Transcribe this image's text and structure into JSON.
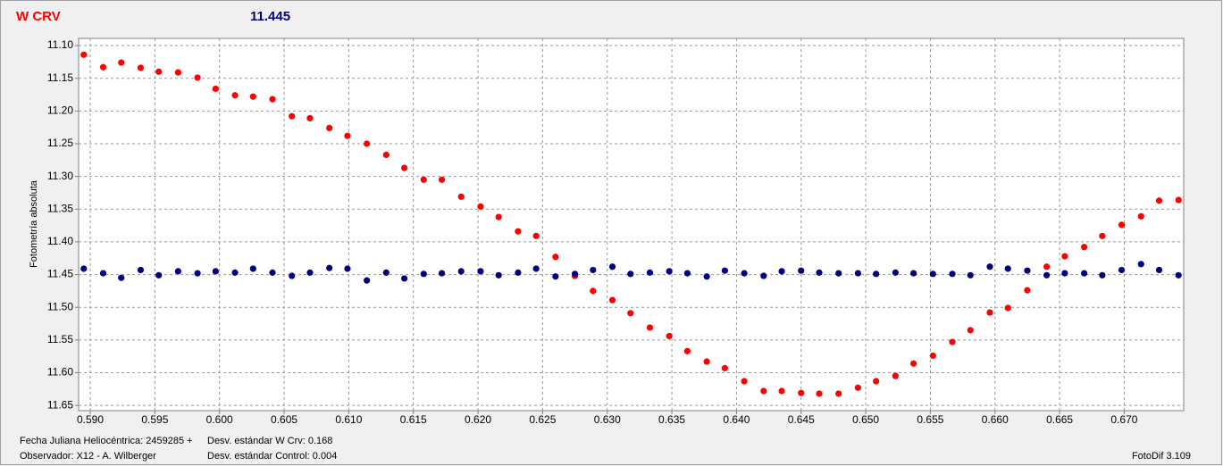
{
  "chart_data": {
    "type": "scatter",
    "title": "W CRV",
    "subtitle": "11.445",
    "y_label": "Fotometría absoluta",
    "footer": {
      "left1": "Fecha Juliana Heliocéntrica: 2459285 +",
      "left2": "Observador: X12 - A. Wilberger",
      "mid1": "Desv. estándar W Crv: 0.168",
      "mid2": "Desv. estándar Control: 0.004",
      "right": "FotoDif 3.109"
    },
    "grid": true,
    "y_inverted": true,
    "xlim": [
      0.5891,
      0.6746
    ],
    "ylim": [
      11.089,
      11.658
    ],
    "xticks": [
      {
        "value": 0.59,
        "label": "0.590"
      },
      {
        "value": 0.595,
        "label": "0.595"
      },
      {
        "value": 0.6,
        "label": "0.600"
      },
      {
        "value": 0.605,
        "label": "0.605"
      },
      {
        "value": 0.61,
        "label": "0.610"
      },
      {
        "value": 0.615,
        "label": "0.615"
      },
      {
        "value": 0.62,
        "label": "0.620"
      },
      {
        "value": 0.625,
        "label": "0.625"
      },
      {
        "value": 0.63,
        "label": "0.630"
      },
      {
        "value": 0.635,
        "label": "0.635"
      },
      {
        "value": 0.64,
        "label": "0.640"
      },
      {
        "value": 0.645,
        "label": "0.645"
      },
      {
        "value": 0.65,
        "label": "0.650"
      },
      {
        "value": 0.655,
        "label": "0.655"
      },
      {
        "value": 0.66,
        "label": "0.660"
      },
      {
        "value": 0.665,
        "label": "0.665"
      },
      {
        "value": 0.67,
        "label": "0.670"
      }
    ],
    "yticks": [
      {
        "value": 11.1,
        "label": "11.10"
      },
      {
        "value": 11.15,
        "label": "11.15"
      },
      {
        "value": 11.2,
        "label": "11.20"
      },
      {
        "value": 11.25,
        "label": "11.25"
      },
      {
        "value": 11.3,
        "label": "11.30"
      },
      {
        "value": 11.35,
        "label": "11.35"
      },
      {
        "value": 11.4,
        "label": "11.40"
      },
      {
        "value": 11.45,
        "label": "11.45"
      },
      {
        "value": 11.5,
        "label": "11.50"
      },
      {
        "value": 11.55,
        "label": "11.55"
      },
      {
        "value": 11.6,
        "label": "11.60"
      },
      {
        "value": 11.65,
        "label": "11.65"
      }
    ],
    "x": [
      0.5895,
      0.591,
      0.5924,
      0.5939,
      0.5953,
      0.5968,
      0.5983,
      0.5997,
      0.6012,
      0.6026,
      0.6041,
      0.6056,
      0.607,
      0.6085,
      0.6099,
      0.6114,
      0.6129,
      0.6143,
      0.6158,
      0.6172,
      0.6187,
      0.6202,
      0.6216,
      0.6231,
      0.6245,
      0.626,
      0.6275,
      0.6289,
      0.6304,
      0.6318,
      0.6333,
      0.6348,
      0.6362,
      0.6377,
      0.6391,
      0.6406,
      0.6421,
      0.6435,
      0.645,
      0.6464,
      0.6479,
      0.6494,
      0.6508,
      0.6523,
      0.6537,
      0.6552,
      0.6567,
      0.6581,
      0.6596,
      0.661,
      0.6625,
      0.664,
      0.6654,
      0.6669,
      0.6683,
      0.6698,
      0.6713,
      0.6727,
      0.6742
    ],
    "series": [
      {
        "color": "#ff0000",
        "values": [
          11.114,
          11.133,
          11.126,
          11.134,
          11.14,
          11.141,
          11.149,
          11.166,
          11.176,
          11.178,
          11.182,
          11.208,
          11.211,
          11.226,
          11.238,
          11.25,
          11.267,
          11.287,
          11.305,
          11.305,
          11.331,
          11.346,
          11.362,
          11.384,
          11.391,
          11.423,
          11.452,
          11.475,
          11.489,
          11.509,
          11.531,
          11.544,
          11.567,
          11.583,
          11.593,
          11.613,
          11.628,
          11.628,
          11.631,
          11.632,
          11.632,
          11.623,
          11.613,
          11.605,
          11.586,
          11.574,
          11.553,
          11.535,
          11.508,
          11.501,
          11.474,
          11.438,
          11.422,
          11.408,
          11.391,
          11.374,
          11.361,
          11.337,
          11.336
        ]
      },
      {
        "color": "#000080",
        "values": [
          11.441,
          11.448,
          11.455,
          11.443,
          11.451,
          11.445,
          11.448,
          11.445,
          11.447,
          11.441,
          11.447,
          11.452,
          11.447,
          11.44,
          11.441,
          11.459,
          11.447,
          11.456,
          11.449,
          11.448,
          11.445,
          11.445,
          11.451,
          11.447,
          11.441,
          11.453,
          11.449,
          11.443,
          11.438,
          11.449,
          11.447,
          11.445,
          11.448,
          11.453,
          11.444,
          11.448,
          11.452,
          11.445,
          11.444,
          11.447,
          11.448,
          11.448,
          11.449,
          11.447,
          11.448,
          11.449,
          11.449,
          11.451,
          11.438,
          11.441,
          11.444,
          11.451,
          11.448,
          11.448,
          11.451,
          11.443,
          11.434,
          11.443,
          11.451
        ]
      }
    ]
  }
}
